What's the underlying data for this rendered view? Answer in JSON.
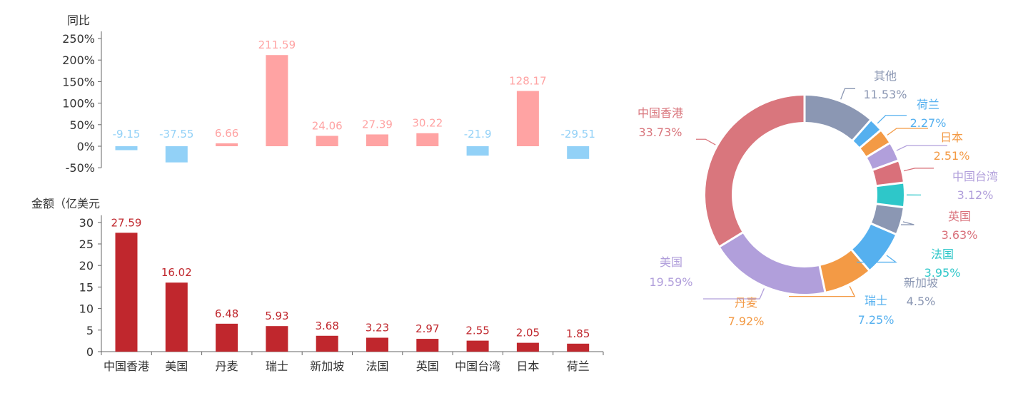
{
  "chart_data": [
    {
      "type": "bar",
      "ylabel": "同比",
      "ylim": [
        -50,
        250
      ],
      "yticks": [
        "250%",
        "200%",
        "150%",
        "100%",
        "50%",
        "0%",
        "-50%"
      ],
      "categories": [
        "中国香港",
        "美国",
        "丹麦",
        "瑞士",
        "新加坡",
        "法国",
        "英国",
        "中国台湾",
        "日本",
        "荷兰"
      ],
      "values": [
        -9.15,
        -37.55,
        6.66,
        211.59,
        24.06,
        27.39,
        30.22,
        -21.9,
        128.17,
        -29.51
      ],
      "value_labels": [
        "-9.15",
        "-37.55",
        "6.66",
        "211.59",
        "24.06",
        "27.39",
        "30.22",
        "-21.9",
        "128.17",
        "-29.51"
      ],
      "colors": {
        "positive": "#ffa3a3",
        "negative": "#92d1f7"
      }
    },
    {
      "type": "bar",
      "ylabel": "金额（亿美元",
      "ylim": [
        0,
        30
      ],
      "yticks": [
        "30",
        "25",
        "20",
        "15",
        "10",
        "5",
        "0"
      ],
      "categories": [
        "中国香港",
        "美国",
        "丹麦",
        "瑞士",
        "新加坡",
        "法国",
        "英国",
        "中国台湾",
        "日本",
        "荷兰"
      ],
      "values": [
        27.59,
        16.02,
        6.48,
        5.93,
        3.68,
        3.23,
        2.97,
        2.55,
        2.05,
        1.85
      ],
      "value_labels": [
        "27.59",
        "16.02",
        "6.48",
        "5.93",
        "3.68",
        "3.23",
        "2.97",
        "2.55",
        "2.05",
        "1.85"
      ],
      "colors": {
        "bar": "#c0272d",
        "label": "#c0272d"
      }
    },
    {
      "type": "pie",
      "donut": true,
      "slices": [
        {
          "name": "其他",
          "value": 11.53,
          "label": "11.53%",
          "color": "#8b97b3"
        },
        {
          "name": "荷兰",
          "value": 2.27,
          "label": "2.27%",
          "color": "#55b0ef"
        },
        {
          "name": "日本",
          "value": 2.51,
          "label": "2.51%",
          "color": "#f39a45"
        },
        {
          "name": "中国台湾",
          "value": 3.12,
          "label": "3.12%",
          "color": "#b19fdb"
        },
        {
          "name": "英国",
          "value": 3.63,
          "label": "3.63%",
          "color": "#d9707a"
        },
        {
          "name": "法国",
          "value": 3.95,
          "label": "3.95%",
          "color": "#2ec7c9"
        },
        {
          "name": "新加坡",
          "value": 4.5,
          "label": "4.5%",
          "color": "#8b97b3"
        },
        {
          "name": "瑞士",
          "value": 7.25,
          "label": "7.25%",
          "color": "#55b0ef"
        },
        {
          "name": "丹麦",
          "value": 7.92,
          "label": "7.92%",
          "color": "#f39a45"
        },
        {
          "name": "美国",
          "value": 19.59,
          "label": "19.59%",
          "color": "#b19fdb"
        },
        {
          "name": "中国香港",
          "value": 33.73,
          "label": "33.73%",
          "color": "#d9767d"
        }
      ]
    }
  ]
}
